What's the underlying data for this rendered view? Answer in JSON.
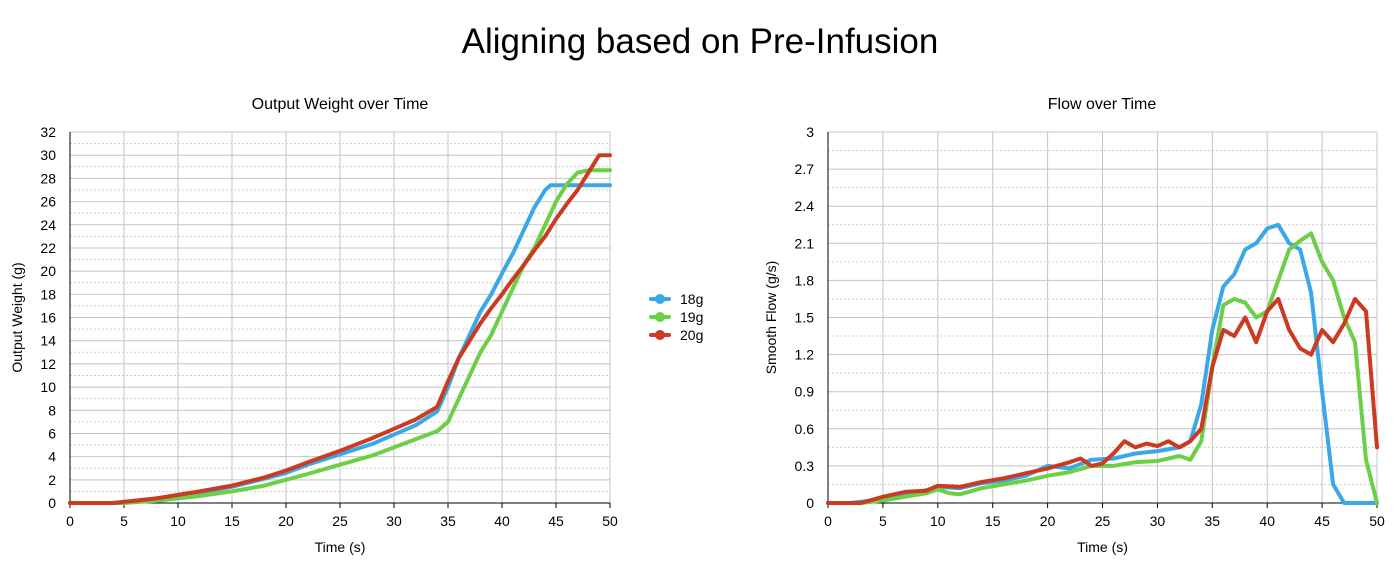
{
  "page_title": "Aligning based on Pre-Infusion",
  "legend": [
    {
      "name": "18g",
      "color": "#3aa8e8"
    },
    {
      "name": "19g",
      "color": "#6ccf47"
    },
    {
      "name": "20g",
      "color": "#cc3a22"
    }
  ],
  "chart_data": [
    {
      "type": "line",
      "title": "Output Weight over Time",
      "xlabel": "Time (s)",
      "ylabel": "Output Weight (g)",
      "xlim": [
        0,
        50
      ],
      "ylim": [
        0,
        32
      ],
      "x_ticks": [
        0,
        5,
        10,
        15,
        20,
        25,
        30,
        35,
        40,
        45,
        50
      ],
      "y_ticks": [
        0,
        2,
        4,
        6,
        8,
        10,
        12,
        14,
        16,
        18,
        20,
        22,
        24,
        26,
        28,
        30,
        32
      ],
      "grid": true,
      "series": [
        {
          "name": "18g",
          "color": "#3aa8e8",
          "x": [
            0,
            4,
            6,
            8,
            10,
            12,
            15,
            18,
            20,
            22,
            25,
            28,
            30,
            32,
            34,
            35,
            36,
            37,
            38,
            39,
            40,
            41,
            42,
            43,
            44,
            44.5,
            45,
            47,
            50
          ],
          "y": [
            0,
            0,
            0.2,
            0.4,
            0.6,
            0.9,
            1.4,
            2.1,
            2.6,
            3.3,
            4.2,
            5.1,
            5.9,
            6.7,
            7.9,
            10,
            12.5,
            14.5,
            16.5,
            18,
            19.8,
            21.5,
            23.5,
            25.5,
            27,
            27.4,
            27.4,
            27.4,
            27.4
          ]
        },
        {
          "name": "19g",
          "color": "#6ccf47",
          "x": [
            0,
            5,
            8,
            10,
            12,
            15,
            18,
            20,
            22,
            25,
            28,
            30,
            32,
            34,
            35,
            36,
            37,
            38,
            39,
            40,
            41,
            42,
            43,
            44,
            45,
            46,
            47,
            48,
            50
          ],
          "y": [
            0,
            0,
            0.2,
            0.4,
            0.6,
            1.0,
            1.5,
            2.0,
            2.5,
            3.3,
            4.1,
            4.8,
            5.5,
            6.2,
            7,
            9,
            11,
            13,
            14.5,
            16.5,
            18.5,
            20.5,
            22,
            24,
            26,
            27.5,
            28.5,
            28.7,
            28.7
          ]
        },
        {
          "name": "20g",
          "color": "#cc3a22",
          "x": [
            0,
            4,
            6,
            8,
            10,
            12,
            15,
            18,
            20,
            22,
            25,
            28,
            30,
            32,
            34,
            35,
            36,
            37,
            38,
            39,
            40,
            41,
            42,
            43,
            44,
            45,
            46,
            47,
            48,
            49,
            50
          ],
          "y": [
            0,
            0,
            0.2,
            0.4,
            0.7,
            1.0,
            1.5,
            2.2,
            2.8,
            3.5,
            4.5,
            5.6,
            6.4,
            7.2,
            8.3,
            10.5,
            12.5,
            14,
            15.5,
            16.8,
            18,
            19.3,
            20.5,
            21.8,
            23,
            24.5,
            25.8,
            27,
            28.5,
            30,
            30
          ]
        }
      ]
    },
    {
      "type": "line",
      "title": "Flow over Time",
      "xlabel": "Time (s)",
      "ylabel": "Smooth Flow (g/s)",
      "xlim": [
        0,
        50
      ],
      "ylim": [
        0,
        3
      ],
      "x_ticks": [
        0,
        5,
        10,
        15,
        20,
        25,
        30,
        35,
        40,
        45,
        50
      ],
      "y_ticks": [
        "0",
        "0.3",
        "0.6",
        "0.9",
        "1.2",
        "1.5",
        "1.8",
        "2.1",
        "2.4",
        "2.7",
        "3"
      ],
      "grid": true,
      "series": [
        {
          "name": "18g",
          "color": "#3aa8e8",
          "x": [
            0,
            2,
            4,
            6,
            8,
            10,
            12,
            14,
            16,
            18,
            20,
            22,
            24,
            26,
            28,
            30,
            32,
            33,
            34,
            35,
            36,
            37,
            38,
            39,
            40,
            41,
            42,
            43,
            44,
            45,
            46,
            47,
            50
          ],
          "y": [
            0,
            0,
            0.02,
            0.05,
            0.08,
            0.13,
            0.12,
            0.16,
            0.18,
            0.22,
            0.3,
            0.28,
            0.35,
            0.36,
            0.4,
            0.42,
            0.45,
            0.5,
            0.8,
            1.4,
            1.75,
            1.85,
            2.05,
            2.1,
            2.22,
            2.25,
            2.1,
            2.05,
            1.7,
            0.9,
            0.15,
            0,
            0
          ]
        },
        {
          "name": "19g",
          "color": "#6ccf47",
          "x": [
            0,
            3,
            5,
            7,
            9,
            10,
            11,
            12,
            14,
            16,
            18,
            20,
            22,
            24,
            26,
            28,
            30,
            32,
            33,
            34,
            35,
            36,
            37,
            38,
            39,
            40,
            41,
            42,
            43,
            44,
            45,
            46,
            47,
            48,
            49,
            50
          ],
          "y": [
            0,
            0,
            0.02,
            0.05,
            0.08,
            0.11,
            0.08,
            0.07,
            0.12,
            0.15,
            0.18,
            0.22,
            0.25,
            0.3,
            0.3,
            0.33,
            0.34,
            0.38,
            0.35,
            0.5,
            1.1,
            1.6,
            1.65,
            1.62,
            1.5,
            1.55,
            1.8,
            2.05,
            2.12,
            2.18,
            1.95,
            1.8,
            1.5,
            1.3,
            0.35,
            0
          ]
        },
        {
          "name": "20g",
          "color": "#cc3a22",
          "x": [
            0,
            3,
            5,
            7,
            9,
            10,
            12,
            14,
            16,
            18,
            20,
            22,
            23,
            24,
            25,
            26,
            27,
            28,
            29,
            30,
            31,
            32,
            33,
            34,
            35,
            36,
            37,
            38,
            39,
            40,
            41,
            42,
            43,
            44,
            45,
            46,
            47,
            48,
            49,
            50
          ],
          "y": [
            0,
            0,
            0.05,
            0.09,
            0.1,
            0.14,
            0.13,
            0.17,
            0.2,
            0.24,
            0.28,
            0.33,
            0.36,
            0.3,
            0.32,
            0.4,
            0.5,
            0.45,
            0.48,
            0.46,
            0.5,
            0.45,
            0.5,
            0.6,
            1.1,
            1.4,
            1.35,
            1.5,
            1.3,
            1.55,
            1.65,
            1.4,
            1.25,
            1.2,
            1.4,
            1.3,
            1.45,
            1.65,
            1.55,
            0.45
          ]
        }
      ]
    }
  ]
}
